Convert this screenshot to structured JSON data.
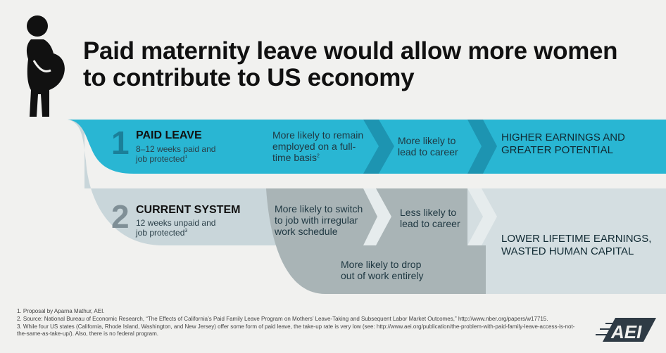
{
  "title": "Paid maternity leave would allow more women to contribute to US economy",
  "paid_leave": {
    "number": "1",
    "label": "PAID LEAVE",
    "desc": "8–12 weeks paid and job protected",
    "desc_ref": "1",
    "steps": [
      {
        "text": "More likely to remain employed on a full-time basis",
        "ref": "2"
      },
      {
        "text": "More likely to lead to career"
      }
    ],
    "outcome": "HIGHER EARNINGS AND GREATER POTENTIAL"
  },
  "current_system": {
    "number": "2",
    "label": "CURRENT SYSTEM",
    "desc": "12 weeks unpaid and job protected",
    "desc_ref": "3",
    "steps": [
      {
        "text": "More likely to switch to job with irregular work schedule"
      },
      {
        "text": "Less likely to lead to career"
      }
    ],
    "drop_out": "More likely to drop out of work entirely",
    "outcome": "LOWER LIFETIME EARNINGS, WASTED HUMAN CAPITAL"
  },
  "footnotes": [
    "1. Proposal by Aparna Mathur, AEI.",
    "2. Source: National Bureau of Economic Research, “The Effects of California’s Paid Family Leave Program on Mothers’ Leave-Taking and Subsequent Labor Market Outcomes,” http://www.nber.org/papers/w17715.",
    "3. While four US states (California, Rhode Island, Washington, and New Jersey) offer some form of paid leave, the take-up rate is very low (see: http://www.aei.org/publication/the-problem-with-paid-family-leave-access-is-not-the-same-as-take-up/). Also, there is no federal program."
  ],
  "logo": "AEI",
  "colors": {
    "background": "#f1f1ef",
    "paid_band": "#29b6d3",
    "paid_band_dark": "#1a8ba6",
    "current_band": "#c9d6da",
    "dropout_band": "#a9b4b6",
    "outcome_panel": "#d4dee1"
  }
}
